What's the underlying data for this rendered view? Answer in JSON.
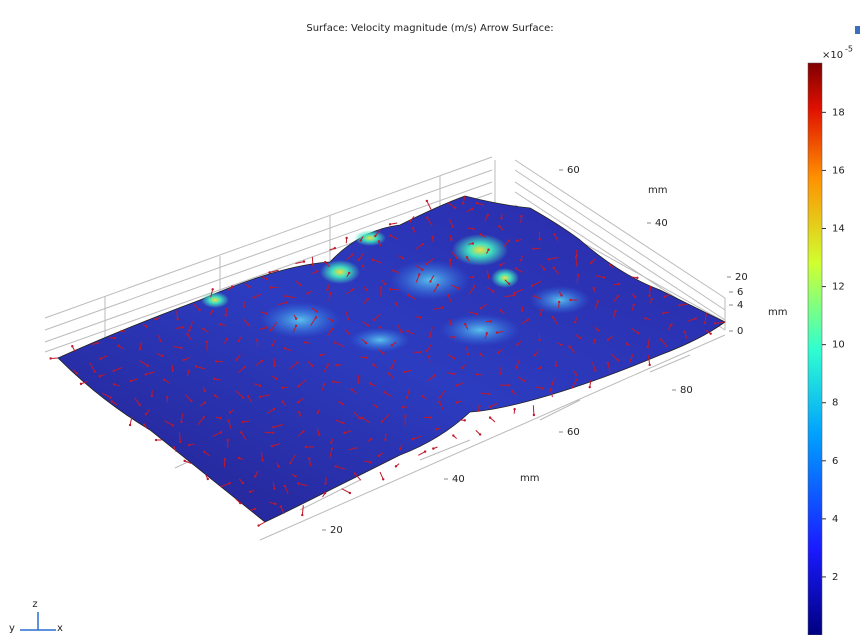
{
  "chart_data": {
    "type": "surface",
    "title": "Surface: Velocity magnitude (m/s)  Arrow Surface:",
    "colorbar": {
      "multiplier": "×10",
      "exponent": "-5",
      "lim": [
        0,
        19.7
      ],
      "ticks": [
        2,
        4,
        6,
        8,
        10,
        12,
        14,
        16,
        18
      ]
    },
    "x_axis": {
      "label": "mm",
      "ticks": [
        20,
        40,
        60,
        80
      ]
    },
    "y_axis": {
      "label": "mm",
      "ticks": [
        40,
        60
      ]
    },
    "z_axis": {
      "label": "mm",
      "ticks": [
        0,
        4,
        6,
        20
      ]
    },
    "triad": [
      "y",
      "z",
      "x"
    ],
    "arrow_color": "#c0182a"
  }
}
